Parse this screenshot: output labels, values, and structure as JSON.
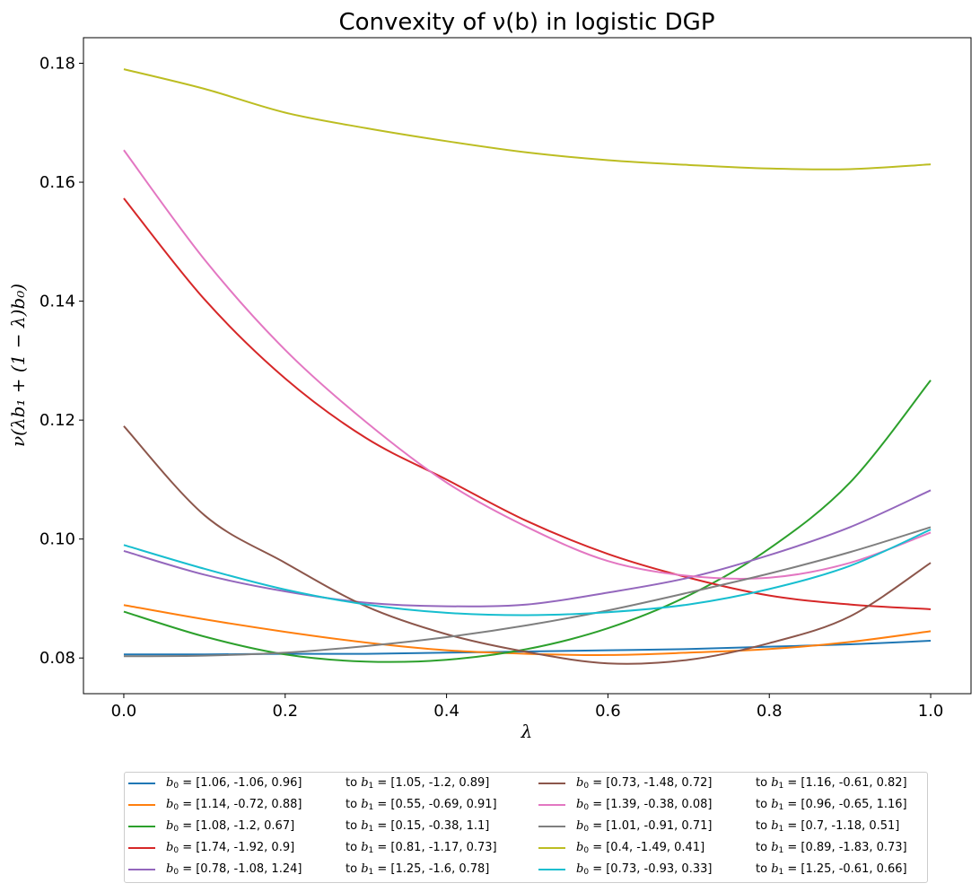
{
  "chart_data": {
    "type": "line",
    "title": "Convexity of ν(b) in logistic DGP",
    "xlabel": "λ",
    "ylabel": "ν(λb₁ + (1 − λ)b₀)",
    "xlim": [
      -0.05,
      1.05
    ],
    "ylim": [
      0.074,
      0.1843
    ],
    "xticks": [
      0.0,
      0.2,
      0.4,
      0.6,
      0.8,
      1.0
    ],
    "xtick_labels": [
      "0.0",
      "0.2",
      "0.4",
      "0.6",
      "0.8",
      "1.0"
    ],
    "yticks": [
      0.08,
      0.1,
      0.12,
      0.14,
      0.16,
      0.18
    ],
    "ytick_labels": [
      "0.08",
      "0.10",
      "0.12",
      "0.14",
      "0.16",
      "0.18"
    ],
    "grid": false,
    "legend_position": "bottom-center",
    "x": [
      0.0,
      0.1,
      0.2,
      0.3,
      0.4,
      0.5,
      0.6,
      0.7,
      0.8,
      0.9,
      1.0
    ],
    "series": [
      {
        "name": "b0=[1.06, -1.06, 0.96] to b1=[1.05, -1.2, 0.89]",
        "b0": "[1.06, -1.06, 0.96]",
        "b1": "[1.05, -1.2, 0.89]",
        "color": "#1f77b4",
        "values": [
          0.0806,
          0.0806,
          0.0807,
          0.0807,
          0.0809,
          0.0811,
          0.0813,
          0.0815,
          0.0819,
          0.0823,
          0.0829
        ]
      },
      {
        "name": "b0=[1.14, -0.72, 0.88] to b1=[0.55, -0.69, 0.91]",
        "b0": "[1.14, -0.72, 0.88]",
        "b1": "[0.55, -0.69, 0.91]",
        "color": "#ff7f0e",
        "values": [
          0.0889,
          0.0865,
          0.0844,
          0.0826,
          0.0813,
          0.0807,
          0.0805,
          0.0809,
          0.0815,
          0.0827,
          0.0845
        ]
      },
      {
        "name": "b0=[1.08, -1.2, 0.67] to b1=[0.15, -0.38, 1.1]",
        "b0": "[1.08, -1.2, 0.67]",
        "b1": "[0.15, -0.38, 1.1]",
        "color": "#2ca02c",
        "values": [
          0.0878,
          0.0836,
          0.0806,
          0.0794,
          0.0797,
          0.0815,
          0.085,
          0.0905,
          0.0984,
          0.1095,
          0.1267
        ]
      },
      {
        "name": "b0=[1.74, -1.92, 0.9] to b1=[0.81, -1.17, 0.73]",
        "b0": "[1.74, -1.92, 0.9]",
        "b1": "[0.81, -1.17, 0.73]",
        "color": "#d62728",
        "values": [
          0.1573,
          0.1403,
          0.127,
          0.117,
          0.11,
          0.103,
          0.0975,
          0.0935,
          0.0905,
          0.089,
          0.0882
        ]
      },
      {
        "name": "b0=[0.78, -1.08, 1.24] to b1=[1.25, -1.6, 0.78]",
        "b0": "[0.78, -1.08, 1.24]",
        "b1": "[1.25, -1.6, 0.78]",
        "color": "#9467bd",
        "values": [
          0.098,
          0.094,
          0.0912,
          0.0893,
          0.0887,
          0.089,
          0.091,
          0.0935,
          0.0973,
          0.102,
          0.1082
        ]
      },
      {
        "name": "b0=[0.73, -1.48, 0.72] to b1=[1.16, -0.61, 0.82]",
        "b0": "[0.73, -1.48, 0.72]",
        "b1": "[1.16, -0.61, 0.82]",
        "color": "#8c564b",
        "values": [
          0.119,
          0.104,
          0.096,
          0.0887,
          0.084,
          0.081,
          0.0791,
          0.0797,
          0.0825,
          0.087,
          0.096
        ]
      },
      {
        "name": "b0=[1.39, -0.38, 0.08] to b1=[0.96, -0.65, 1.16]",
        "b0": "[1.39, -0.38, 0.08]",
        "b1": "[0.96, -0.65, 1.16]",
        "color": "#e377c2",
        "values": [
          0.1654,
          0.147,
          0.1318,
          0.1197,
          0.1095,
          0.102,
          0.0963,
          0.0938,
          0.0935,
          0.096,
          0.1011
        ]
      },
      {
        "name": "b0=[1.01, -0.91, 0.71] to b1=[0.7, -1.18, 0.51]",
        "b0": "[1.01, -0.91, 0.71]",
        "b1": "[0.7, -1.18, 0.51]",
        "color": "#7f7f7f",
        "values": [
          0.0803,
          0.0804,
          0.0809,
          0.082,
          0.0835,
          0.0855,
          0.088,
          0.091,
          0.0942,
          0.0978,
          0.102
        ]
      },
      {
        "name": "b0=[0.4, -1.49, 0.41] to b1=[0.89, -1.83, 0.73]",
        "b0": "[0.4, -1.49, 0.41]",
        "b1": "[0.89, -1.83, 0.73]",
        "color": "#bcbd22",
        "values": [
          0.179,
          0.1757,
          0.1717,
          0.1691,
          0.1669,
          0.165,
          0.1637,
          0.1629,
          0.1623,
          0.1622,
          0.163
        ]
      },
      {
        "name": "b0=[0.73, -0.93, 0.33] to b1=[1.25, -0.61, 0.66]",
        "b0": "[0.73, -0.93, 0.33]",
        "b1": "[1.25, -0.61, 0.66]",
        "color": "#17becf",
        "values": [
          0.099,
          0.095,
          0.0915,
          0.089,
          0.0876,
          0.0872,
          0.0877,
          0.089,
          0.0916,
          0.0955,
          0.1016
        ]
      }
    ]
  }
}
